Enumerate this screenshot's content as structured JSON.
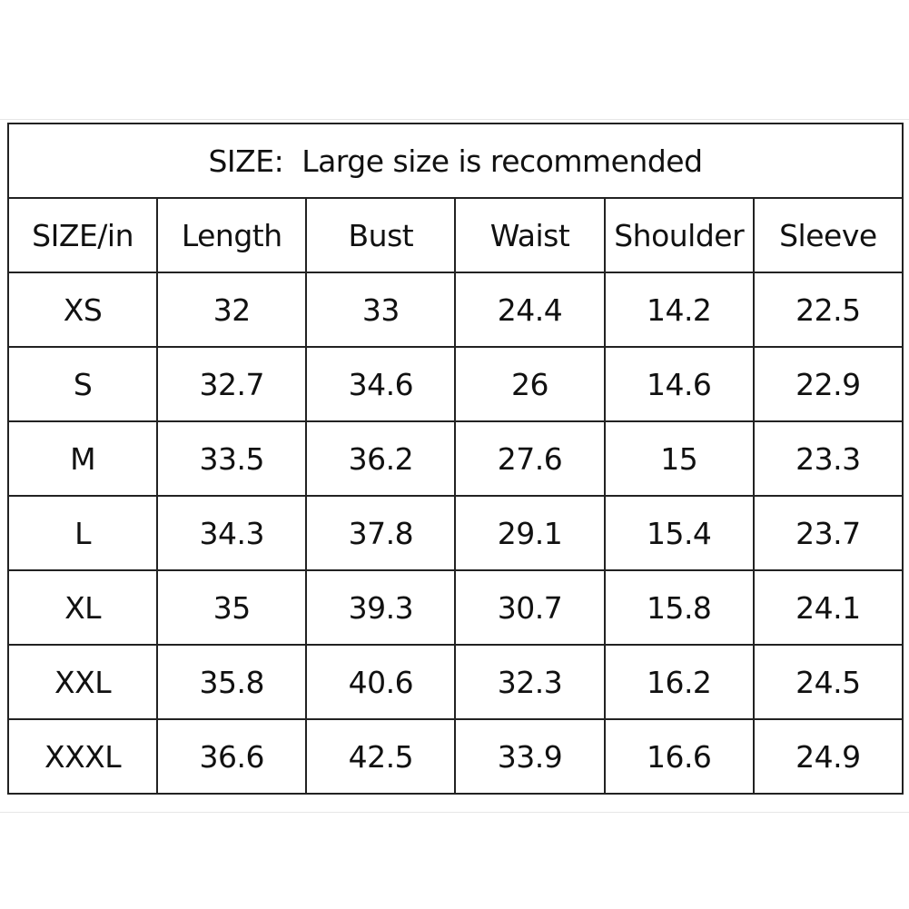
{
  "title": "SIZE:  Large size is recommended",
  "table": {
    "header": [
      "SIZE/in",
      "Length",
      "Bust",
      "Waist",
      "Shoulder",
      "Sleeve"
    ],
    "rows": [
      [
        "XS",
        "32",
        "33",
        "24.4",
        "14.2",
        "22.5"
      ],
      [
        "S",
        "32.7",
        "34.6",
        "26",
        "14.6",
        "22.9"
      ],
      [
        "M",
        "33.5",
        "36.2",
        "27.6",
        "15",
        "23.3"
      ],
      [
        "L",
        "34.3",
        "37.8",
        "29.1",
        "15.4",
        "23.7"
      ],
      [
        "XL",
        "35",
        "39.3",
        "30.7",
        "15.8",
        "24.1"
      ],
      [
        "XXL",
        "35.8",
        "40.6",
        "32.3",
        "16.2",
        "24.5"
      ],
      [
        "XXXL",
        "36.6",
        "42.5",
        "33.9",
        "16.6",
        "24.9"
      ]
    ]
  }
}
